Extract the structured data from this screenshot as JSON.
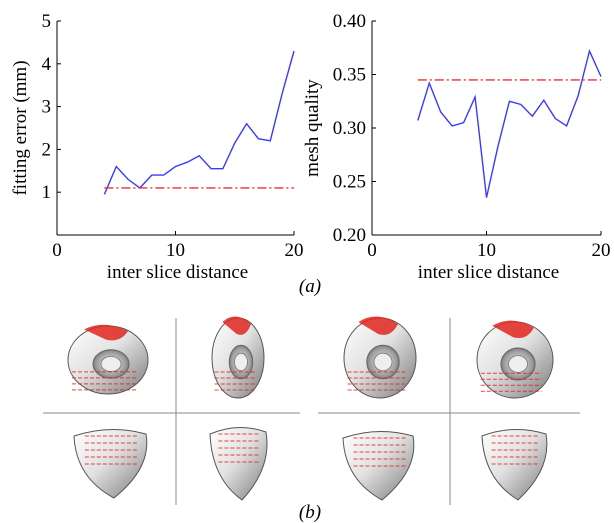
{
  "chart_data": [
    {
      "type": "line",
      "xlabel": "inter slice distance",
      "ylabel": "fitting error (mm)",
      "xlim": [
        0,
        20
      ],
      "ylim": [
        0,
        5
      ],
      "xticks": [
        "0",
        "10",
        "20"
      ],
      "yticks": [
        "1",
        "2",
        "3",
        "4",
        "5"
      ],
      "series": [
        {
          "color": "#3a3aff",
          "style": "solid",
          "x": [
            4,
            5,
            6,
            7,
            8,
            9,
            10,
            11,
            12,
            13,
            14,
            15,
            16,
            17,
            18,
            19,
            20
          ],
          "values": [
            0.95,
            1.6,
            1.3,
            1.1,
            1.4,
            1.4,
            1.6,
            1.7,
            1.85,
            1.55,
            1.55,
            2.15,
            2.6,
            2.25,
            2.2,
            3.3,
            4.3
          ]
        },
        {
          "color": "#e83030",
          "style": "dashdot",
          "x": [
            4,
            20
          ],
          "values": [
            1.1,
            1.1
          ]
        }
      ]
    },
    {
      "type": "line",
      "xlabel": "inter slice distance",
      "ylabel": "mesh quality",
      "xlim": [
        0,
        20
      ],
      "ylim": [
        0.2,
        0.4
      ],
      "xticks": [
        "0",
        "10",
        "20"
      ],
      "yticks": [
        "0.20",
        "0.25",
        "0.30",
        "0.35",
        "0.40"
      ],
      "series": [
        {
          "color": "#3a3aff",
          "style": "solid",
          "x": [
            4,
            5,
            6,
            7,
            8,
            9,
            10,
            11,
            12,
            13,
            14,
            15,
            16,
            17,
            18,
            19,
            20
          ],
          "values": [
            0.307,
            0.342,
            0.315,
            0.302,
            0.305,
            0.329,
            0.235,
            0.283,
            0.325,
            0.322,
            0.311,
            0.326,
            0.309,
            0.302,
            0.33,
            0.372,
            0.348
          ]
        },
        {
          "color": "#e83030",
          "style": "dashdot",
          "x": [
            4,
            20
          ],
          "values": [
            0.345,
            0.345
          ]
        }
      ]
    }
  ],
  "captions": {
    "a": "(a)",
    "b": "(b)"
  },
  "colors": {
    "mesh_surface": "#d9d9d9",
    "mesh_highlight": "#f4f4f4",
    "mesh_shadow": "#6b6b6b",
    "contour_red": "#e0261f"
  }
}
